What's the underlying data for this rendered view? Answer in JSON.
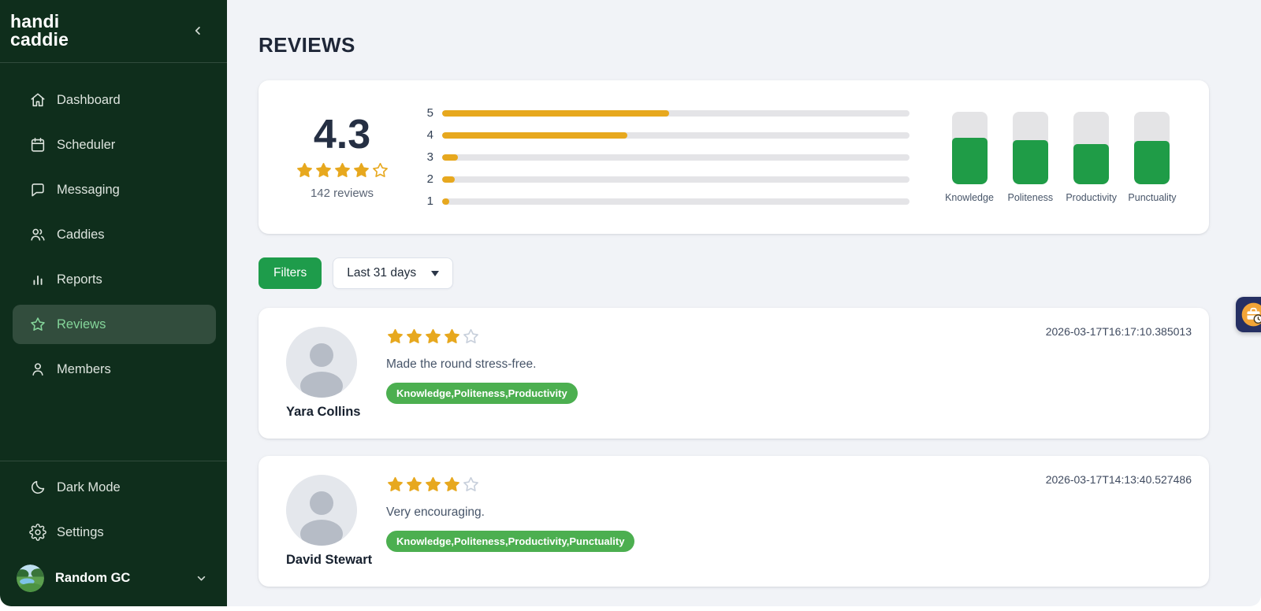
{
  "colors": {
    "sidebar_bg": "#0f2e1c",
    "sidebar_active_text": "#84d59a",
    "gold": "#e7a81e",
    "star_empty_gray": "#c7cfdb",
    "green_button": "#1e9c4b",
    "green_bar": "#1f9c47",
    "green_tag": "#4caf50",
    "heading_navy": "#1e2637",
    "main_bg": "#f1f3f7"
  },
  "sidebar": {
    "logo_line1": "handi",
    "logo_line2": "caddie",
    "items": [
      {
        "label": "Dashboard",
        "icon": "home"
      },
      {
        "label": "Scheduler",
        "icon": "calendar"
      },
      {
        "label": "Messaging",
        "icon": "chat"
      },
      {
        "label": "Caddies",
        "icon": "users"
      },
      {
        "label": "Reports",
        "icon": "bar-chart"
      },
      {
        "label": "Reviews",
        "icon": "star",
        "active": true
      },
      {
        "label": "Members",
        "icon": "user"
      }
    ],
    "footer_items": [
      {
        "label": "Dark Mode",
        "icon": "moon"
      },
      {
        "label": "Settings",
        "icon": "gear"
      }
    ],
    "org": {
      "name": "Random GC"
    }
  },
  "header": {
    "title": "REVIEWS"
  },
  "summary": {
    "average": "4.3",
    "stars": 4,
    "count_label": "142 reviews"
  },
  "chart_data": [
    {
      "type": "bar",
      "title": "Rating distribution",
      "orientation": "horizontal",
      "categories": [
        "5",
        "4",
        "3",
        "2",
        "1"
      ],
      "values_percent": [
        48.5,
        39.7,
        3.3,
        2.7,
        1.5
      ],
      "xlim": [
        0,
        100
      ],
      "grid": false,
      "bar_color": "#e7a81e",
      "track_color": "#e4e4e7"
    },
    {
      "type": "bar",
      "title": "Category scores",
      "orientation": "vertical",
      "categories": [
        "Knowledge",
        "Politeness",
        "Productivity",
        "Punctuality"
      ],
      "values_percent": [
        64,
        60,
        55,
        59
      ],
      "ylim": [
        0,
        100
      ],
      "grid": false,
      "bar_color": "#1f9c47",
      "track_color": "#e4e4e6"
    }
  ],
  "filters": {
    "button_label": "Filters",
    "date_range": "Last 31 days"
  },
  "reviews": [
    {
      "name": "Yara Collins",
      "stars": 4,
      "text": "Made the round stress-free.",
      "tags": "Knowledge,Politeness,Productivity",
      "timestamp": "2026-03-17T16:17:10.385013"
    },
    {
      "name": "David Stewart",
      "stars": 4,
      "text": "Very encouraging.",
      "tags": "Knowledge,Politeness,Productivity,Punctuality",
      "timestamp": "2026-03-17T14:13:40.527486"
    }
  ]
}
